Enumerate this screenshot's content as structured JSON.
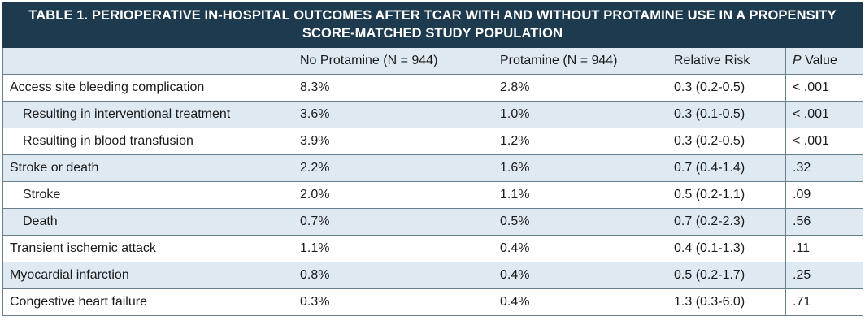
{
  "title_line1": "TABLE 1.  PERIOPERATIVE IN-HOSPITAL OUTCOMES AFTER TCAR WITH AND WITHOUT PROTAMINE USE IN A PROPENSITY",
  "title_line2": "SCORE-MATCHED STUDY POPULATION",
  "columns": {
    "outcome": "",
    "no_protamine": "No Protamine (N = 944)",
    "protamine": "Protamine (N = 944)",
    "relative_risk": "Relative Risk",
    "p_value_italic": "P",
    "p_value_rest": " Value"
  },
  "rows": [
    {
      "outcome": "Access site bleeding complication",
      "no_protamine": "8.3%",
      "protamine": "2.8%",
      "relative_risk": "0.3 (0.2-0.5)",
      "p_value": "< .001"
    },
    {
      "outcome": "Resulting in interventional treatment",
      "no_protamine": "3.6%",
      "protamine": "1.0%",
      "relative_risk": "0.3 (0.1-0.5)",
      "p_value": "< .001"
    },
    {
      "outcome": "Resulting in blood transfusion",
      "no_protamine": "3.9%",
      "protamine": "1.2%",
      "relative_risk": "0.3 (0.2-0.5)",
      "p_value": "< .001"
    },
    {
      "outcome": "Stroke or death",
      "no_protamine": "2.2%",
      "protamine": "1.6%",
      "relative_risk": "0.7 (0.4-1.4)",
      "p_value": ".32"
    },
    {
      "outcome": "Stroke",
      "no_protamine": "2.0%",
      "protamine": "1.1%",
      "relative_risk": "0.5 (0.2-1.1)",
      "p_value": ".09"
    },
    {
      "outcome": "Death",
      "no_protamine": "0.7%",
      "protamine": "0.5%",
      "relative_risk": "0.7 (0.2-2.3)",
      "p_value": ".56"
    },
    {
      "outcome": "Transient ischemic attack",
      "no_protamine": "1.1%",
      "protamine": "0.4%",
      "relative_risk": "0.4 (0.1-1.3)",
      "p_value": ".11"
    },
    {
      "outcome": "Myocardial infarction",
      "no_protamine": "0.8%",
      "protamine": "0.4%",
      "relative_risk": "0.5 (0.2-1.7)",
      "p_value": ".25"
    },
    {
      "outcome": "Congestive heart failure",
      "no_protamine": "0.3%",
      "protamine": "0.4%",
      "relative_risk": "1.3 (0.3-6.0)",
      "p_value": ".71"
    }
  ]
}
